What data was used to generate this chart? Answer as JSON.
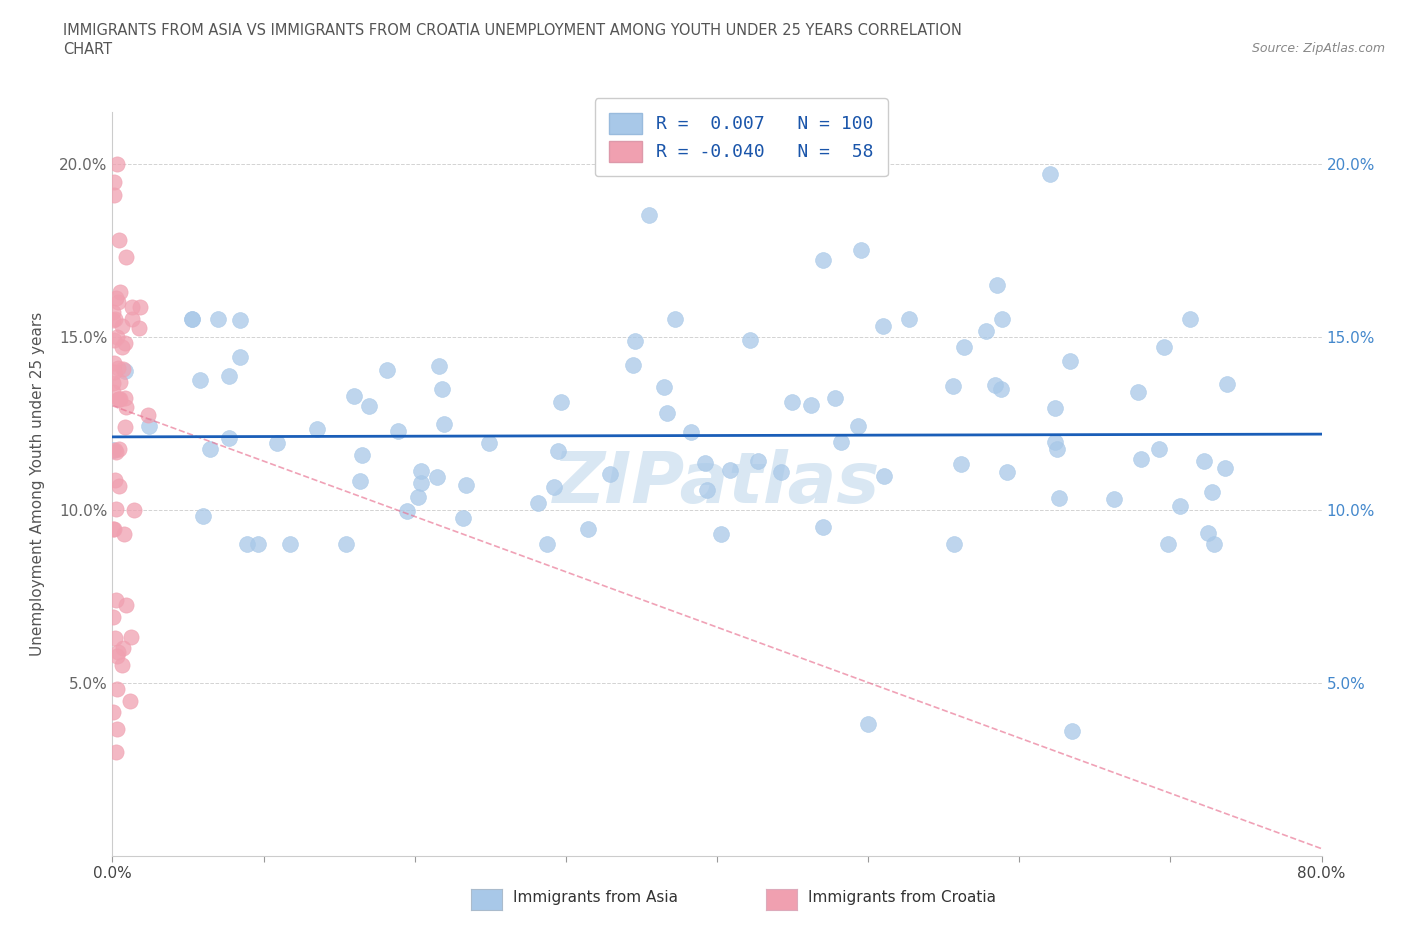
{
  "title_line1": "IMMIGRANTS FROM ASIA VS IMMIGRANTS FROM CROATIA UNEMPLOYMENT AMONG YOUTH UNDER 25 YEARS CORRELATION",
  "title_line2": "CHART",
  "source_text": "Source: ZipAtlas.com",
  "ylabel": "Unemployment Among Youth under 25 years",
  "xmin": 0.0,
  "xmax": 0.8,
  "ymin": 0.0,
  "ymax": 0.215,
  "yticks": [
    0.05,
    0.1,
    0.15,
    0.2
  ],
  "yticklabels": [
    "5.0%",
    "10.0%",
    "15.0%",
    "20.0%"
  ],
  "xticks": [
    0.0,
    0.1,
    0.2,
    0.3,
    0.4,
    0.5,
    0.6,
    0.7,
    0.8
  ],
  "xticklabels": [
    "0.0%",
    "",
    "",
    "",
    "",
    "",
    "",
    "",
    "80.0%"
  ],
  "legend_asia_r": "0.007",
  "legend_asia_n": "100",
  "legend_croatia_r": "-0.040",
  "legend_croatia_n": "58",
  "asia_color": "#a8c8e8",
  "croatia_color": "#f0a0b0",
  "trend_asia_color": "#1a5eb8",
  "trend_croatia_color": "#e87090",
  "right_tick_color": "#4488cc",
  "watermark_text": "ZIPatlas",
  "watermark_color": "#c0d8ec",
  "asia_n": 100,
  "croatia_n": 58
}
